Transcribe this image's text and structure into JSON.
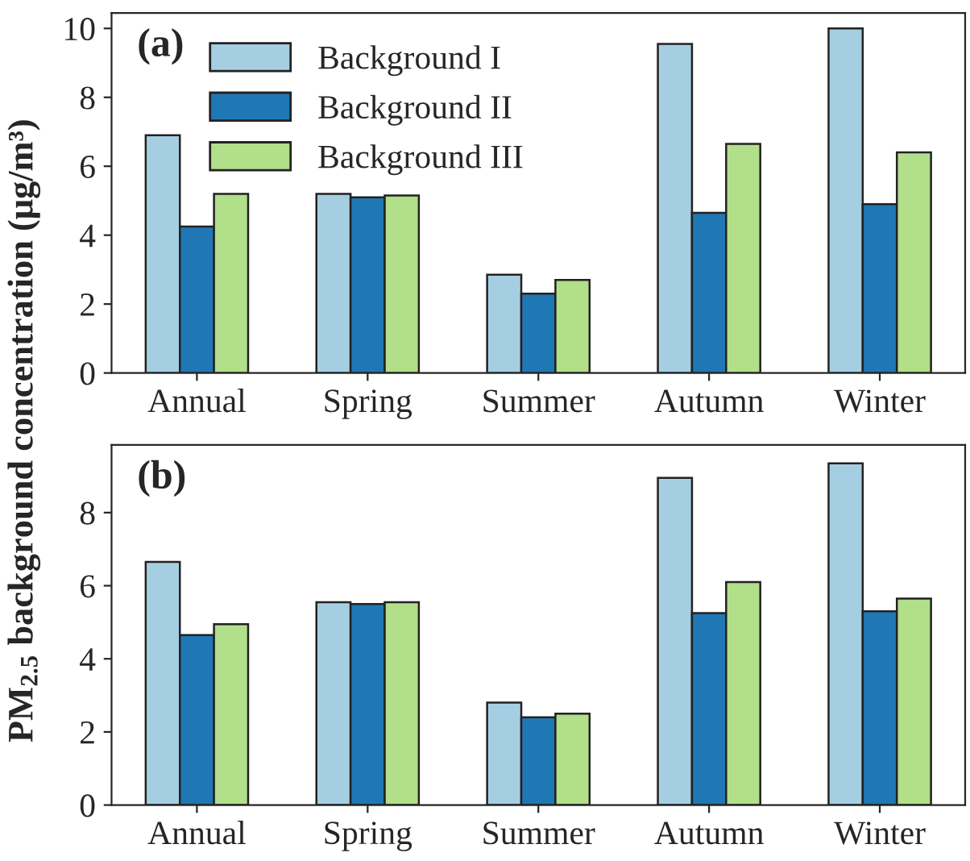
{
  "chart_data": [
    {
      "type": "bar",
      "ylabel": "PM$_{2.5}$ background concentration (μg/m³)",
      "annotations": [
        "(a)"
      ],
      "categories": [
        "Annual",
        "Spring",
        "Summer",
        "Autumn",
        "Winter"
      ],
      "series": [
        {
          "name": "Background I",
          "color": "#a6cee3",
          "values": [
            6.9,
            5.2,
            2.85,
            9.55,
            10.0
          ]
        },
        {
          "name": "Background II",
          "color": "#1f78b4",
          "values": [
            4.25,
            5.1,
            2.3,
            4.65,
            4.9
          ]
        },
        {
          "name": "Background III",
          "color": "#b2df8a",
          "values": [
            5.2,
            5.15,
            2.7,
            6.65,
            6.4
          ]
        }
      ],
      "ylim": [
        0,
        10.45
      ],
      "yticks": [
        0,
        2,
        4,
        6,
        8,
        10
      ],
      "legend": "top left",
      "grid": false
    },
    {
      "type": "bar",
      "annotations": [
        "(b)"
      ],
      "categories": [
        "Annual",
        "Spring",
        "Summer",
        "Autumn",
        "Winter"
      ],
      "series": [
        {
          "color": "#a6cee3",
          "values": [
            6.65,
            5.55,
            2.8,
            8.95,
            9.35
          ]
        },
        {
          "color": "#1f78b4",
          "values": [
            4.65,
            5.5,
            2.4,
            5.25,
            5.3
          ]
        },
        {
          "color": "#b2df8a",
          "values": [
            4.95,
            5.55,
            2.5,
            6.1,
            5.65
          ]
        }
      ],
      "ylim": [
        0,
        9.85
      ],
      "yticks": [
        0,
        2,
        4,
        6,
        8
      ],
      "grid": false
    }
  ]
}
